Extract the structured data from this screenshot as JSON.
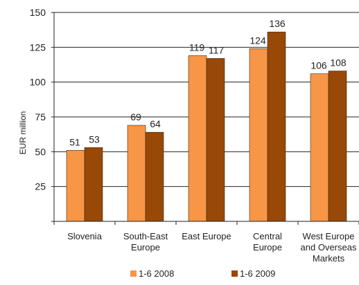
{
  "chart_data": {
    "type": "bar",
    "title": "",
    "xlabel": "",
    "ylabel": "EUR million",
    "ylim": [
      0,
      150
    ],
    "yticks": [
      "",
      "25",
      "50",
      "75",
      "100",
      "125",
      "150"
    ],
    "grid": true,
    "legend_position": "bottom",
    "categories": [
      [
        "Slovenia"
      ],
      [
        "South-East",
        "Europe"
      ],
      [
        "East Europe"
      ],
      [
        "Central",
        "Europe"
      ],
      [
        "West Europe",
        "and Overseas",
        "Markets"
      ]
    ],
    "series": [
      {
        "name": "1-6 2008",
        "color": "#F79646",
        "values": [
          51,
          69,
          119,
          124,
          106
        ]
      },
      {
        "name": "1-6 2009",
        "color": "#984807",
        "values": [
          53,
          64,
          117,
          136,
          108
        ]
      }
    ]
  }
}
